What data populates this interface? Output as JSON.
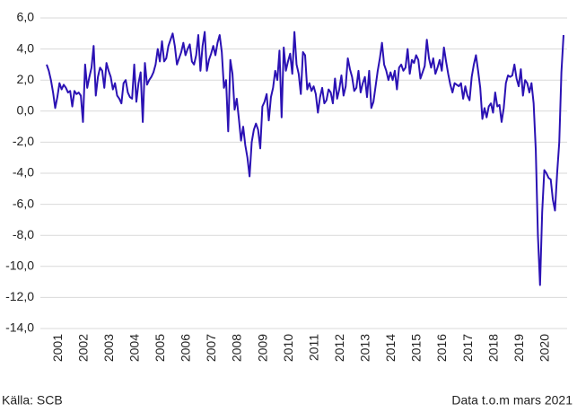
{
  "chart_data": {
    "type": "line",
    "categories": [
      "2001",
      null,
      null,
      null,
      null,
      null,
      null,
      null,
      null,
      null,
      null,
      null,
      "2002",
      null,
      null,
      null,
      null,
      null,
      null,
      null,
      null,
      null,
      null,
      null,
      "2003",
      null,
      null,
      null,
      null,
      null,
      null,
      null,
      null,
      null,
      null,
      null,
      "2004",
      null,
      null,
      null,
      null,
      null,
      null,
      null,
      null,
      null,
      null,
      null,
      "2005",
      null,
      null,
      null,
      null,
      null,
      null,
      null,
      null,
      null,
      null,
      null,
      "2006",
      null,
      null,
      null,
      null,
      null,
      null,
      null,
      null,
      null,
      null,
      null,
      "2007",
      null,
      null,
      null,
      null,
      null,
      null,
      null,
      null,
      null,
      null,
      null,
      "2008",
      null,
      null,
      null,
      null,
      null,
      null,
      null,
      null,
      null,
      null,
      null,
      "2009",
      null,
      null,
      null,
      null,
      null,
      null,
      null,
      null,
      null,
      null,
      null,
      "2010",
      null,
      null,
      null,
      null,
      null,
      null,
      null,
      null,
      null,
      null,
      null,
      "2011",
      null,
      null,
      null,
      null,
      null,
      null,
      null,
      null,
      null,
      null,
      null,
      "2012",
      null,
      null,
      null,
      null,
      null,
      null,
      null,
      null,
      null,
      null,
      null,
      "2013",
      null,
      null,
      null,
      null,
      null,
      null,
      null,
      null,
      null,
      null,
      null,
      "2014",
      null,
      null,
      null,
      null,
      null,
      null,
      null,
      null,
      null,
      null,
      null,
      "2015",
      null,
      null,
      null,
      null,
      null,
      null,
      null,
      null,
      null,
      null,
      null,
      "2016",
      null,
      null,
      null,
      null,
      null,
      null,
      null,
      null,
      null,
      null,
      null,
      "2017",
      null,
      null,
      null,
      null,
      null,
      null,
      null,
      null,
      null,
      null,
      null,
      "2018",
      null,
      null,
      null,
      null,
      null,
      null,
      null,
      null,
      null,
      null,
      null,
      "2019",
      null,
      null,
      null,
      null,
      null,
      null,
      null,
      null,
      null,
      null,
      null,
      "2020",
      null,
      null,
      null,
      null,
      null,
      null,
      null,
      null,
      null,
      null,
      null,
      null,
      null,
      null
    ],
    "values": [
      3.0,
      2.6,
      2.0,
      1.2,
      0.2,
      0.9,
      1.8,
      1.4,
      1.7,
      1.5,
      1.2,
      1.3,
      0.3,
      1.3,
      1.1,
      1.2,
      1.0,
      -0.7,
      3.0,
      1.5,
      2.2,
      2.8,
      4.2,
      1.0,
      2.2,
      2.8,
      2.6,
      1.5,
      3.1,
      2.6,
      2.2,
      1.4,
      1.8,
      1.0,
      0.8,
      0.5,
      1.8,
      2.0,
      1.2,
      0.9,
      0.8,
      3.0,
      0.6,
      1.8,
      2.5,
      -0.7,
      3.1,
      1.7,
      2.0,
      2.2,
      2.5,
      3.0,
      4.0,
      3.2,
      4.5,
      3.2,
      3.4,
      4.2,
      4.6,
      5.0,
      4.2,
      3.0,
      3.4,
      3.8,
      4.4,
      3.6,
      4.0,
      4.3,
      3.2,
      3.0,
      3.6,
      4.9,
      2.6,
      4.2,
      5.1,
      2.6,
      3.3,
      3.7,
      4.2,
      3.6,
      4.4,
      4.9,
      3.8,
      1.5,
      2.0,
      -1.3,
      3.3,
      2.4,
      0.1,
      0.8,
      -0.5,
      -1.9,
      -1.0,
      -2.2,
      -3.0,
      -4.2,
      -2.0,
      -1.2,
      -0.8,
      -1.2,
      -2.4,
      0.3,
      0.6,
      1.1,
      -0.6,
      0.9,
      1.5,
      2.6,
      2.0,
      3.9,
      -0.4,
      4.1,
      2.6,
      3.2,
      3.7,
      2.4,
      5.1,
      3.0,
      2.4,
      1.1,
      3.8,
      3.6,
      1.4,
      1.8,
      1.3,
      1.6,
      1.1,
      -0.1,
      0.9,
      1.5,
      0.5,
      0.7,
      1.4,
      1.2,
      0.5,
      2.1,
      0.8,
      1.4,
      2.3,
      1.0,
      1.6,
      3.4,
      2.7,
      2.2,
      1.3,
      1.5,
      2.6,
      1.2,
      1.8,
      2.2,
      0.9,
      2.6,
      0.2,
      0.6,
      1.6,
      2.6,
      3.4,
      4.4,
      3.0,
      2.6,
      2.0,
      2.5,
      2.0,
      2.6,
      1.4,
      2.8,
      3.0,
      2.6,
      2.8,
      4.0,
      2.4,
      3.3,
      3.1,
      3.6,
      3.3,
      2.1,
      2.5,
      2.9,
      4.6,
      3.4,
      2.8,
      3.4,
      2.4,
      2.8,
      3.3,
      2.6,
      4.1,
      3.2,
      2.4,
      1.7,
      1.2,
      1.8,
      1.7,
      1.6,
      1.8,
      0.8,
      1.6,
      1.0,
      0.7,
      2.2,
      3.0,
      3.6,
      2.6,
      1.5,
      -0.5,
      0.2,
      -0.4,
      0.3,
      0.5,
      -0.1,
      1.2,
      0.3,
      0.4,
      -0.7,
      0.2,
      1.8,
      2.3,
      2.2,
      2.3,
      3.0,
      2.1,
      1.6,
      2.7,
      1.0,
      2.0,
      1.8,
      1.2,
      1.8,
      0.5,
      -2.5,
      -8.0,
      -11.2,
      -6.5,
      -3.8,
      -4.0,
      -4.3,
      -4.4,
      -5.7,
      -6.4,
      -4.0,
      -2.0,
      2.5,
      4.9
    ],
    "color": "#2b12b4",
    "ylim": [
      -14,
      6
    ],
    "yticks": [
      {
        "value": -14,
        "label": "-14,0"
      },
      {
        "value": -12,
        "label": "-12,0"
      },
      {
        "value": -10,
        "label": "-10,0"
      },
      {
        "value": -8,
        "label": "-8,0"
      },
      {
        "value": -6,
        "label": "-6,0"
      },
      {
        "value": -4,
        "label": "-4,0"
      },
      {
        "value": -2,
        "label": "-2,0"
      },
      {
        "value": 0,
        "label": "0,0"
      },
      {
        "value": 2,
        "label": "2,0"
      },
      {
        "value": 4,
        "label": "4,0"
      },
      {
        "value": 6,
        "label": "6,0"
      }
    ],
    "grid": true,
    "source": "Källa: SCB",
    "note": "Data t.o.m mars 2021"
  }
}
